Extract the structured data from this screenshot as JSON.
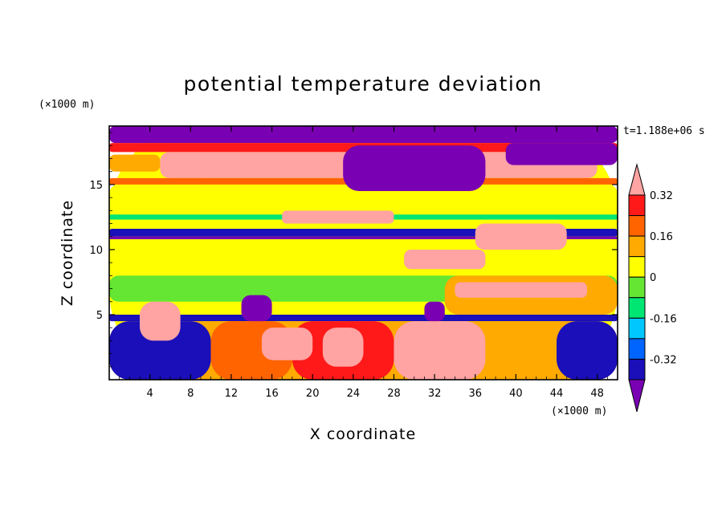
{
  "chart_data": {
    "type": "heatmap",
    "title": "potential temperature deviation",
    "xlabel": "X coordinate",
    "ylabel": "Z coordinate",
    "x_unit": "(×1000 m)",
    "y_unit": "(×1000 m)",
    "time_label": "t=1.188e+06 s",
    "x_ticks": [
      4,
      8,
      12,
      16,
      20,
      24,
      28,
      32,
      36,
      40,
      44,
      48
    ],
    "y_ticks": [
      5,
      10,
      15
    ],
    "xlim": [
      0,
      50
    ],
    "ylim": [
      0,
      19.5
    ],
    "colorbar": {
      "levels": [
        -0.48,
        -0.4,
        -0.32,
        -0.24,
        -0.16,
        -0.08,
        0,
        0.08,
        0.16,
        0.24,
        0.32,
        0.4
      ],
      "tick_labels": [
        "0.32",
        "0.16",
        "0",
        "-0.16",
        "-0.32"
      ],
      "tick_values": [
        0.32,
        0.16,
        0,
        -0.16,
        -0.32
      ],
      "colors_low_to_high": [
        "#7a00b3",
        "#1a0fb8",
        "#0064ff",
        "#00c8ff",
        "#00e673",
        "#64e632",
        "#ffff00",
        "#ffaa00",
        "#ff6400",
        "#ff1919",
        "#ffa3a3"
      ],
      "extend": "both"
    },
    "regions": [
      {
        "x": [
          0,
          50
        ],
        "z": [
          0,
          19.5
        ],
        "value": 0.0
      },
      {
        "x": [
          0,
          50
        ],
        "z": [
          13.0,
          15.0
        ],
        "value": 0.05
      },
      {
        "x": [
          0,
          50
        ],
        "z": [
          8.0,
          10.8
        ],
        "value": 0.02
      },
      {
        "x": [
          0,
          50
        ],
        "z": [
          6.0,
          8.0
        ],
        "value": -0.06
      },
      {
        "x": [
          0,
          50
        ],
        "z": [
          18.2,
          19.5
        ],
        "value": -0.45
      },
      {
        "x": [
          0,
          50
        ],
        "z": [
          17.5,
          18.2
        ],
        "value": 0.3
      },
      {
        "x": [
          5,
          48
        ],
        "z": [
          15.5,
          17.5
        ],
        "value": 0.45
      },
      {
        "x": [
          0,
          5
        ],
        "z": [
          16.0,
          17.3
        ],
        "value": 0.12
      },
      {
        "x": [
          0,
          50
        ],
        "z": [
          15.0,
          15.5
        ],
        "value": 0.2
      },
      {
        "x": [
          0,
          50
        ],
        "z": [
          11.0,
          11.6
        ],
        "value": -0.36
      },
      {
        "x": [
          0,
          50
        ],
        "z": [
          10.8,
          11.0
        ],
        "value": -0.45
      },
      {
        "x": [
          0,
          50
        ],
        "z": [
          12.3,
          12.7
        ],
        "value": -0.14
      },
      {
        "x": [
          0,
          50
        ],
        "z": [
          11.6,
          12.3
        ],
        "value": 0.06
      },
      {
        "x": [
          23,
          37
        ],
        "z": [
          14.5,
          18.0
        ],
        "value": -0.45
      },
      {
        "x": [
          39,
          50
        ],
        "z": [
          16.5,
          18.2
        ],
        "value": -0.45
      },
      {
        "x": [
          17,
          28
        ],
        "z": [
          12.0,
          13.0
        ],
        "value": 0.45
      },
      {
        "x": [
          36,
          45
        ],
        "z": [
          10.0,
          12.0
        ],
        "value": 0.45
      },
      {
        "x": [
          29,
          37
        ],
        "z": [
          8.5,
          10.0
        ],
        "value": 0.45
      },
      {
        "x": [
          33,
          50
        ],
        "z": [
          5.0,
          8.0
        ],
        "value": 0.15
      },
      {
        "x": [
          34,
          47
        ],
        "z": [
          6.3,
          7.5
        ],
        "value": 0.45
      },
      {
        "x": [
          0,
          50
        ],
        "z": [
          4.5,
          5.0
        ],
        "value": -0.36
      },
      {
        "x": [
          0,
          50
        ],
        "z": [
          0,
          4.5
        ],
        "value": 0.1
      },
      {
        "x": [
          0,
          10
        ],
        "z": [
          0,
          4.5
        ],
        "value": -0.4
      },
      {
        "x": [
          10,
          18
        ],
        "z": [
          0,
          4.5
        ],
        "value": 0.18
      },
      {
        "x": [
          18,
          28
        ],
        "z": [
          0,
          4.5
        ],
        "value": 0.3
      },
      {
        "x": [
          28,
          37
        ],
        "z": [
          0,
          4.5
        ],
        "value": 0.4
      },
      {
        "x": [
          37,
          44
        ],
        "z": [
          0,
          4.5
        ],
        "value": 0.15
      },
      {
        "x": [
          44,
          50
        ],
        "z": [
          0,
          4.5
        ],
        "value": -0.4
      },
      {
        "x": [
          13,
          16
        ],
        "z": [
          4.5,
          6.5
        ],
        "value": -0.45
      },
      {
        "x": [
          31,
          33
        ],
        "z": [
          4.5,
          6.0
        ],
        "value": -0.45
      },
      {
        "x": [
          3,
          7
        ],
        "z": [
          3.0,
          6.0
        ],
        "value": 0.45
      },
      {
        "x": [
          15,
          20
        ],
        "z": [
          1.5,
          4.0
        ],
        "value": 0.45
      },
      {
        "x": [
          21,
          25
        ],
        "z": [
          1.0,
          4.0
        ],
        "value": 0.45
      },
      {
        "x": [
          30,
          33
        ],
        "z": [
          1.5,
          3.5
        ],
        "value": 0.45
      }
    ]
  }
}
